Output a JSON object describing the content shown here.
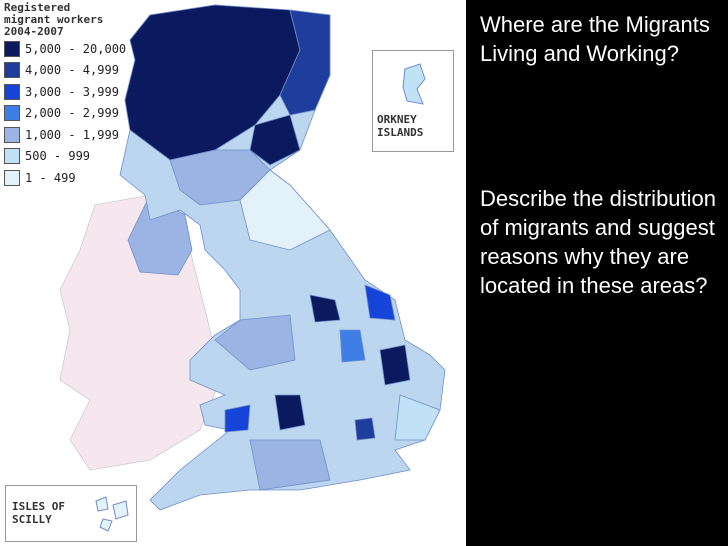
{
  "legend": {
    "title_lines": [
      "Registered",
      "migrant workers",
      "2004-2007"
    ],
    "entries": [
      {
        "label": "5,000 - 20,000",
        "color": "#0b1a5e"
      },
      {
        "label": "4,000 - 4,999",
        "color": "#1f3d9c"
      },
      {
        "label": "3,000 - 3,999",
        "color": "#1744d8"
      },
      {
        "label": "2,000 - 2,999",
        "color": "#3f7ee6"
      },
      {
        "label": "1,000 - 1,999",
        "color": "#9bb4e3"
      },
      {
        "label": "500 - 999",
        "color": "#c0e1f6"
      },
      {
        "label": "1 - 499",
        "color": "#e3f1fb"
      }
    ]
  },
  "insets": {
    "orkney": [
      "ORKNEY",
      "ISLANDS"
    ],
    "scilly": [
      "ISLES OF",
      "SCILLY"
    ]
  },
  "panel": {
    "question": "Where are the Migrants Living and Working?",
    "task": "Describe the distribution of migrants and suggest reasons why they are located in these areas?"
  }
}
